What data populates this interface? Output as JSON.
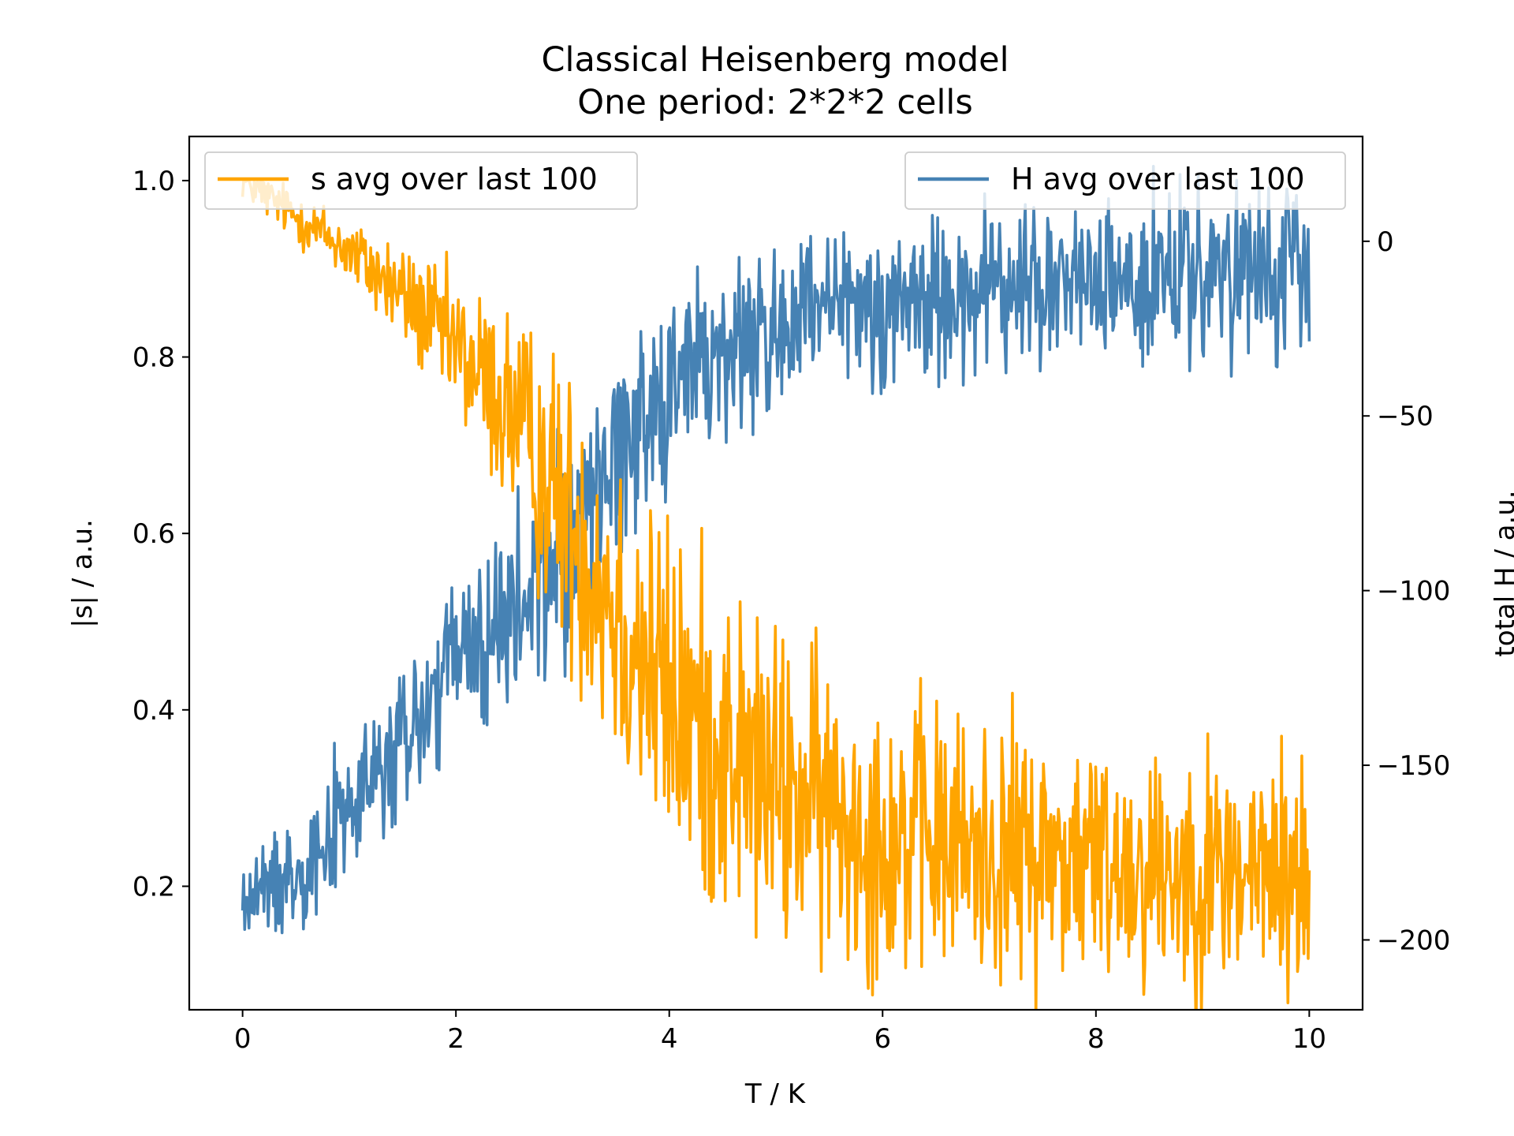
{
  "chart_data": {
    "type": "line",
    "title": "Classical Heisenberg model\nOne period: 2*2*2 cells",
    "title_lines": [
      "Classical Heisenberg model",
      "One period: 2*2*2 cells"
    ],
    "xlabel": "T / K",
    "ylabel_left": "|s| / a.u.",
    "ylabel_right": "total H / a.u.",
    "xlim": [
      -0.5,
      10.5
    ],
    "ylim_left": [
      0.06,
      1.05
    ],
    "ylim_right": [
      -220,
      30
    ],
    "xticks": [
      0,
      2,
      4,
      6,
      8,
      10
    ],
    "yticks_left": [
      0.2,
      0.4,
      0.6,
      0.8,
      1.0
    ],
    "yticks_left_labels": [
      "0.2",
      "0.4",
      "0.6",
      "0.8",
      "1.0"
    ],
    "yticks_right": [
      0,
      -50,
      -100,
      -150,
      -200
    ],
    "yticks_right_labels": [
      "0",
      "−50",
      "−100",
      "−150",
      "−200"
    ],
    "grid": false,
    "sample_points": 1000,
    "series": [
      {
        "name": "s avg over last 100",
        "axis": "left",
        "color": "#ffa500",
        "legend_position": "upper left",
        "trend_x": [
          0,
          0.5,
          1,
          1.5,
          2,
          2.5,
          3,
          3.5,
          4,
          5,
          6,
          7,
          8,
          9,
          10
        ],
        "trend_y": [
          1.0,
          0.96,
          0.92,
          0.87,
          0.81,
          0.74,
          0.63,
          0.52,
          0.41,
          0.31,
          0.26,
          0.24,
          0.23,
          0.22,
          0.21
        ],
        "noise": [
          0.01,
          0.015,
          0.02,
          0.03,
          0.04,
          0.06,
          0.08,
          0.1,
          0.1,
          0.09,
          0.08,
          0.075,
          0.07,
          0.07,
          0.07
        ]
      },
      {
        "name": "H avg over last 100",
        "axis": "right",
        "color": "#4682b4",
        "legend_position": "upper right",
        "trend_x": [
          0,
          0.5,
          1,
          1.5,
          2,
          2.5,
          3,
          3.5,
          4,
          5,
          6,
          7,
          8,
          9,
          10
        ],
        "trend_y": [
          -190,
          -180,
          -163,
          -145,
          -120,
          -110,
          -90,
          -60,
          -40,
          -25,
          -18,
          -14,
          -12,
          -11,
          -10
        ],
        "noise": [
          6,
          8,
          10,
          12,
          13,
          14,
          16,
          16,
          14,
          13,
          12,
          12,
          12,
          12,
          12
        ]
      }
    ]
  }
}
